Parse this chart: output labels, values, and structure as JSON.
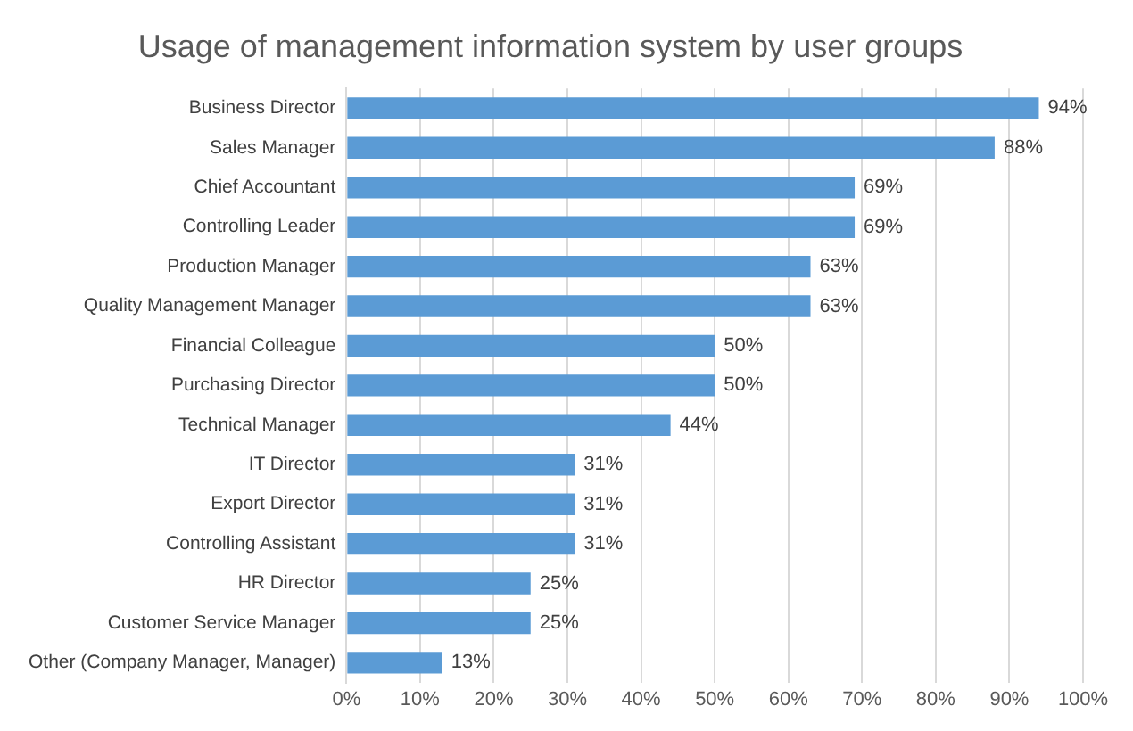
{
  "chart_data": {
    "type": "bar",
    "orientation": "horizontal",
    "title": "Usage of management information system by user groups",
    "categories": [
      "Business Director",
      "Sales Manager",
      "Chief Accountant",
      "Controlling Leader",
      "Production Manager",
      "Quality Management Manager",
      "Financial Colleague",
      "Purchasing Director",
      "Technical Manager",
      "IT Director",
      "Export Director",
      "Controlling Assistant",
      "HR Director",
      "Customer Service Manager",
      "Other (Company Manager, Manager)"
    ],
    "values": [
      94,
      88,
      69,
      69,
      63,
      63,
      50,
      50,
      44,
      31,
      31,
      31,
      25,
      25,
      13
    ],
    "value_labels": [
      "94%",
      "88%",
      "69%",
      "69%",
      "63%",
      "63%",
      "50%",
      "50%",
      "44%",
      "31%",
      "31%",
      "31%",
      "25%",
      "25%",
      "13%"
    ],
    "color": "#5b9bd5",
    "xlim": [
      0,
      100
    ],
    "xticks": [
      {
        "value": 0,
        "label": "0%"
      },
      {
        "value": 10,
        "label": "10%"
      },
      {
        "value": 20,
        "label": "20%"
      },
      {
        "value": 30,
        "label": "30%"
      },
      {
        "value": 40,
        "label": "40%"
      },
      {
        "value": 50,
        "label": "50%"
      },
      {
        "value": 60,
        "label": "60%"
      },
      {
        "value": 70,
        "label": "70%"
      },
      {
        "value": 80,
        "label": "80%"
      },
      {
        "value": 90,
        "label": "90%"
      },
      {
        "value": 100,
        "label": "100%"
      }
    ],
    "grid": "x",
    "legend": false
  }
}
